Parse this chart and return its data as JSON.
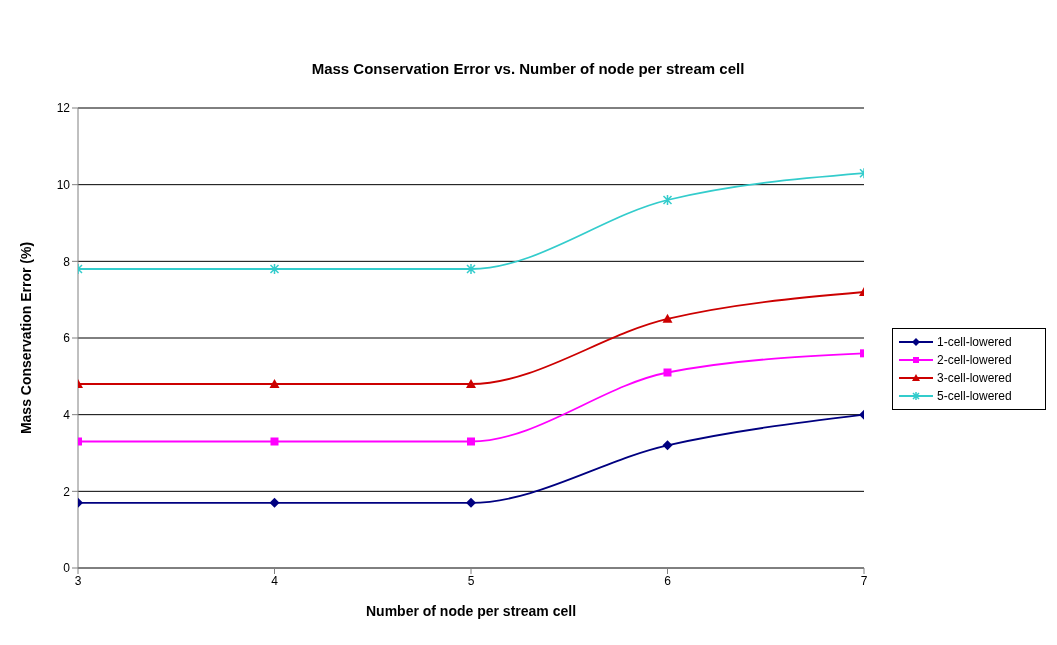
{
  "chart_data": {
    "type": "line",
    "title": "Mass Conservation Error vs. Number of node per stream cell",
    "xlabel": "Number of node per stream cell",
    "ylabel": "Mass Conservation Error (%)",
    "x": [
      3,
      4,
      5,
      6,
      7
    ],
    "xlim": [
      3,
      7
    ],
    "xticks": [
      3,
      4,
      5,
      6,
      7
    ],
    "ylim": [
      0,
      12
    ],
    "yticks": [
      0,
      2,
      4,
      6,
      8,
      10,
      12
    ],
    "grid": "y",
    "legend": "right",
    "line_style": "solid",
    "series": [
      {
        "name": "1-cell-lowered",
        "color": "#000080",
        "marker": "diamond",
        "values": [
          1.7,
          1.7,
          1.7,
          3.2,
          4.0
        ]
      },
      {
        "name": "2-cell-lowered",
        "color": "#ff00ff",
        "marker": "square",
        "values": [
          3.3,
          3.3,
          3.3,
          5.1,
          5.6
        ]
      },
      {
        "name": "3-cell-lowered",
        "color": "#cc0000",
        "marker": "triangle",
        "values": [
          4.8,
          4.8,
          4.8,
          6.5,
          7.2
        ]
      },
      {
        "name": "5-cell-lowered",
        "color": "#33cccc",
        "marker": "cross",
        "values": [
          7.8,
          7.8,
          7.8,
          9.6,
          10.3
        ]
      }
    ]
  }
}
